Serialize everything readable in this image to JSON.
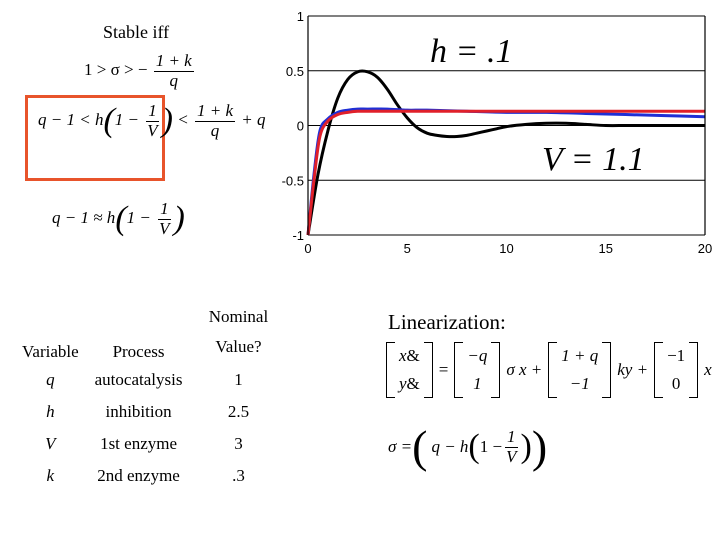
{
  "stability": {
    "heading": "Stable iff",
    "cond1": {
      "lhs": "1 > σ > −",
      "num": "1 + k",
      "den": "q"
    },
    "cond2": {
      "lhs": "q − 1 < h",
      "one": "1 −",
      "num1": "1",
      "den1": "V",
      "lt": "<",
      "num2": "1 + k",
      "den2": "q",
      "tail": "+ q"
    },
    "cond3": {
      "lhs": "q − 1 ≈ h",
      "one": "1 −",
      "num": "1",
      "den": "V"
    },
    "highlight_color": "#e8542b"
  },
  "chart_data": {
    "type": "line",
    "xlim": [
      0,
      20
    ],
    "ylim": [
      -1,
      1
    ],
    "x_ticks": [
      "0",
      "5",
      "10",
      "15",
      "20"
    ],
    "y_ticks": [
      "1",
      "0.5",
      "0",
      "-0.5",
      "-1"
    ],
    "grid": "horizontal",
    "annotations": [
      "h = .1",
      "V = 1.1"
    ],
    "series": [
      {
        "color": "#000000",
        "x": [
          0,
          0.5,
          1,
          1.5,
          2,
          2.5,
          3,
          3.5,
          4,
          4.5,
          5,
          5.5,
          6,
          6.5,
          7,
          7.5,
          8,
          8.5,
          9,
          9.5,
          10,
          11,
          12,
          13,
          14,
          15,
          16,
          17,
          18,
          19,
          20
        ],
        "y": [
          -1,
          -0.45,
          -0.05,
          0.25,
          0.42,
          0.49,
          0.49,
          0.44,
          0.33,
          0.19,
          0.07,
          -0.02,
          -0.07,
          -0.09,
          -0.1,
          -0.1,
          -0.09,
          -0.07,
          -0.05,
          -0.03,
          -0.01,
          0.01,
          0.02,
          0.02,
          0.01,
          0.0,
          0.0,
          0.0,
          0.0,
          0.0,
          0.0
        ]
      },
      {
        "color": "#1f2fd6",
        "x": [
          0,
          0.3,
          0.6,
          1,
          1.5,
          2,
          2.5,
          3,
          4,
          5,
          6,
          8,
          10,
          12,
          14,
          16,
          18,
          20
        ],
        "y": [
          -1,
          -0.45,
          -0.05,
          0.06,
          0.12,
          0.14,
          0.15,
          0.15,
          0.15,
          0.14,
          0.14,
          0.13,
          0.12,
          0.12,
          0.11,
          0.1,
          0.09,
          0.08
        ]
      },
      {
        "color": "#e0202a",
        "x": [
          0,
          0.3,
          0.6,
          1,
          1.5,
          2,
          2.5,
          3,
          4,
          6,
          8,
          10,
          12,
          14,
          16,
          18,
          20
        ],
        "y": [
          -1,
          -0.5,
          -0.1,
          0.04,
          0.1,
          0.12,
          0.13,
          0.13,
          0.13,
          0.13,
          0.13,
          0.13,
          0.13,
          0.13,
          0.13,
          0.13,
          0.13
        ]
      }
    ]
  },
  "variables_table": {
    "headers": [
      "Variable",
      "Process",
      "Nominal Value?"
    ],
    "rows": [
      {
        "variable": "q",
        "process": "autocatalysis",
        "value": "1"
      },
      {
        "variable": "h",
        "process": "inhibition",
        "value": "2.5"
      },
      {
        "variable": "V",
        "process": "1st enzyme",
        "value": "3"
      },
      {
        "variable": "k",
        "process": "2nd enzyme",
        "value": ".3"
      }
    ]
  },
  "linearization": {
    "title": "Linearization:",
    "lhs_vec": [
      "&",
      "&"
    ],
    "lhs_vars": [
      "x",
      "y"
    ],
    "eq": "=",
    "m1": [
      "−q",
      "1"
    ],
    "t1": "σ x +",
    "m2": [
      "1 + q",
      "−1"
    ],
    "t2": "ky +",
    "m3": [
      "−1",
      "0"
    ],
    "t3": "x",
    "sigma_lhs": "σ =",
    "sigma_inner": "q − h",
    "sigma_one": "1 −",
    "sigma_num": "1",
    "sigma_den": "V"
  }
}
